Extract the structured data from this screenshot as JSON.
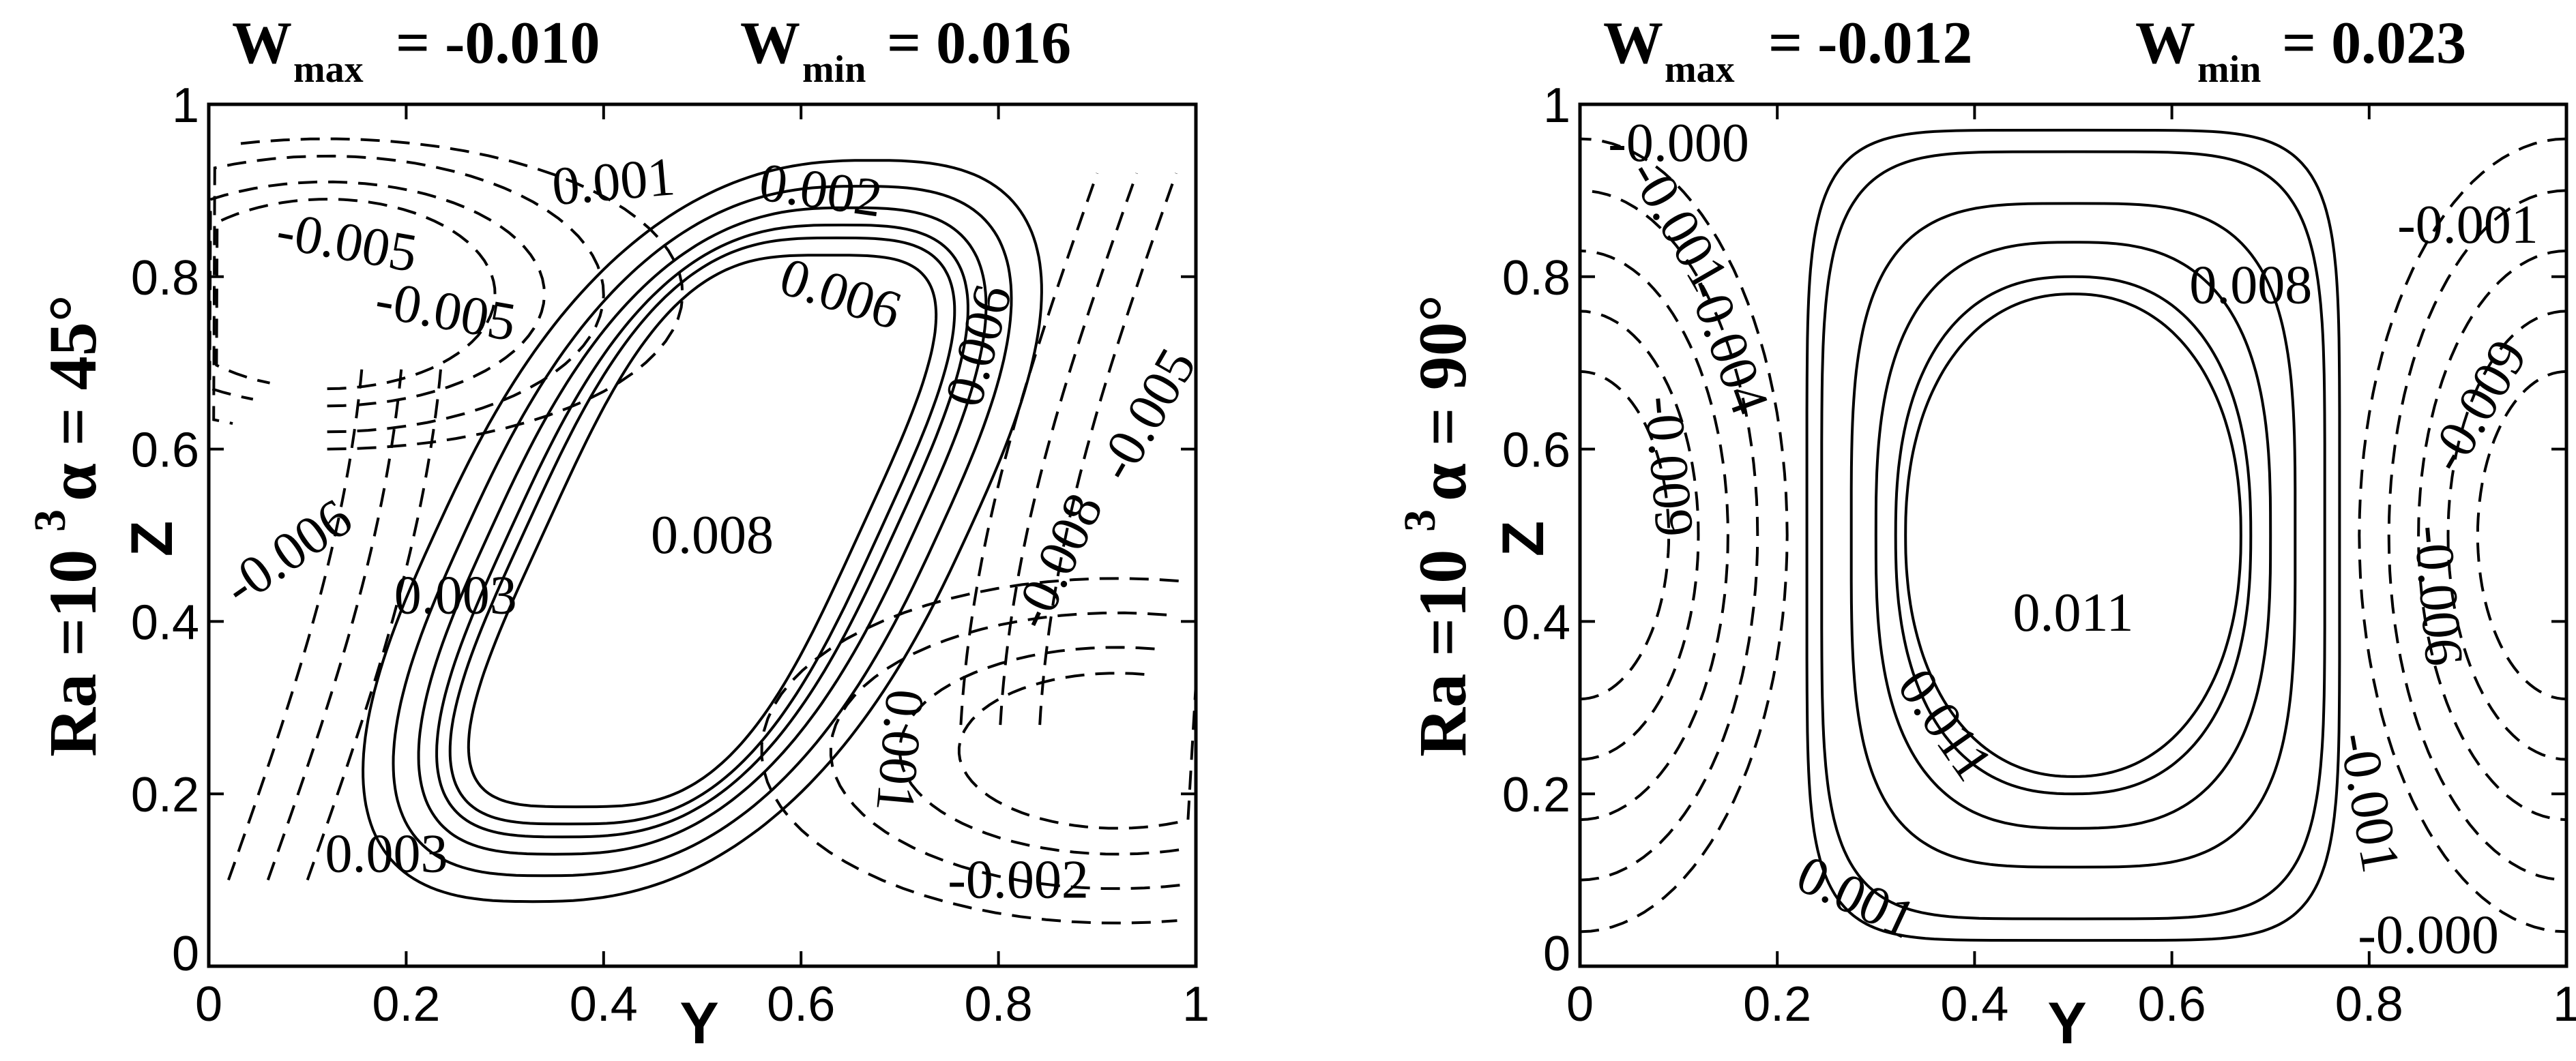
{
  "chart_data": [
    {
      "type": "contour",
      "ylabel_side": {
        "ra": "Ra =10",
        "exp": "3",
        "alpha": "α = 45°"
      },
      "title": {
        "wmax_label": "W",
        "wmax_sub": "max",
        "wmax_value": "= -0.010",
        "wmin_label": "W",
        "wmin_sub": "min",
        "wmin_value": "= 0.016"
      },
      "xlabel": "Y",
      "ylabel": "Z",
      "xlim": [
        0,
        1
      ],
      "ylim": [
        0,
        1
      ],
      "x_ticks": [
        "0",
        "0.2",
        "0.4",
        "0.6",
        "0.8",
        "1"
      ],
      "y_ticks": [
        "0",
        "0.2",
        "0.4",
        "0.6",
        "0.8",
        "1"
      ],
      "grid": false,
      "contour_labels": [
        {
          "text": "0.001",
          "x": 0.41,
          "y": 0.91,
          "rot": -5
        },
        {
          "text": "0.002",
          "x": 0.62,
          "y": 0.9,
          "rot": 8
        },
        {
          "text": "-0.005",
          "x": 0.14,
          "y": 0.84,
          "rot": 10
        },
        {
          "text": "0.006",
          "x": 0.64,
          "y": 0.78,
          "rot": 18
        },
        {
          "text": "-0.005",
          "x": 0.24,
          "y": 0.76,
          "rot": 10
        },
        {
          "text": "0.006",
          "x": 0.78,
          "y": 0.72,
          "rot": -75
        },
        {
          "text": "-0.005",
          "x": 0.95,
          "y": 0.64,
          "rot": -60
        },
        {
          "text": "0.008",
          "x": 0.51,
          "y": 0.5,
          "rot": 0
        },
        {
          "text": "-0.006",
          "x": 0.08,
          "y": 0.48,
          "rot": -35
        },
        {
          "text": "-0.008",
          "x": 0.86,
          "y": 0.47,
          "rot": -65
        },
        {
          "text": "0.003",
          "x": 0.25,
          "y": 0.43,
          "rot": 0
        },
        {
          "text": "0.001",
          "x": 0.7,
          "y": 0.25,
          "rot": 95
        },
        {
          "text": "0.003",
          "x": 0.18,
          "y": 0.13,
          "rot": 0
        },
        {
          "text": "-0.002",
          "x": 0.82,
          "y": 0.1,
          "rot": 0
        }
      ]
    },
    {
      "type": "contour",
      "ylabel_side": {
        "ra": "Ra =10",
        "exp": "3",
        "alpha": "α = 90°"
      },
      "title": {
        "wmax_label": "W",
        "wmax_sub": "max",
        "wmax_value": "= -0.012",
        "wmin_label": "W",
        "wmin_sub": "min",
        "wmin_value": "= 0.023"
      },
      "xlabel": "Y",
      "ylabel": "Z",
      "xlim": [
        0,
        1
      ],
      "ylim": [
        0,
        1
      ],
      "x_ticks": [
        "0",
        "0.2",
        "0.4",
        "0.6",
        "0.8",
        "1"
      ],
      "y_ticks": [
        "0",
        "0.2",
        "0.4",
        "0.6",
        "0.8",
        "1"
      ],
      "grid": false,
      "contour_labels": [
        {
          "text": "-0.000",
          "x": 0.1,
          "y": 0.955,
          "rot": 0
        },
        {
          "text": "-0.001",
          "x": 0.1,
          "y": 0.86,
          "rot": 60
        },
        {
          "text": "-0.001",
          "x": 0.9,
          "y": 0.86,
          "rot": 0
        },
        {
          "text": "0.008",
          "x": 0.68,
          "y": 0.79,
          "rot": 0
        },
        {
          "text": "-0.004",
          "x": 0.15,
          "y": 0.72,
          "rot": 70
        },
        {
          "text": "-0.009",
          "x": 0.91,
          "y": 0.65,
          "rot": -60
        },
        {
          "text": "-0.009",
          "x": 0.09,
          "y": 0.58,
          "rot": 85
        },
        {
          "text": "0.011",
          "x": 0.5,
          "y": 0.41,
          "rot": 0
        },
        {
          "text": "-0.006",
          "x": 0.87,
          "y": 0.43,
          "rot": 85
        },
        {
          "text": "0.011",
          "x": 0.37,
          "y": 0.28,
          "rot": 55
        },
        {
          "text": "-0.001",
          "x": 0.8,
          "y": 0.19,
          "rot": 80
        },
        {
          "text": "0.001",
          "x": 0.28,
          "y": 0.08,
          "rot": 25
        },
        {
          "text": "-0.000",
          "x": 0.86,
          "y": 0.036,
          "rot": 0
        }
      ]
    }
  ]
}
